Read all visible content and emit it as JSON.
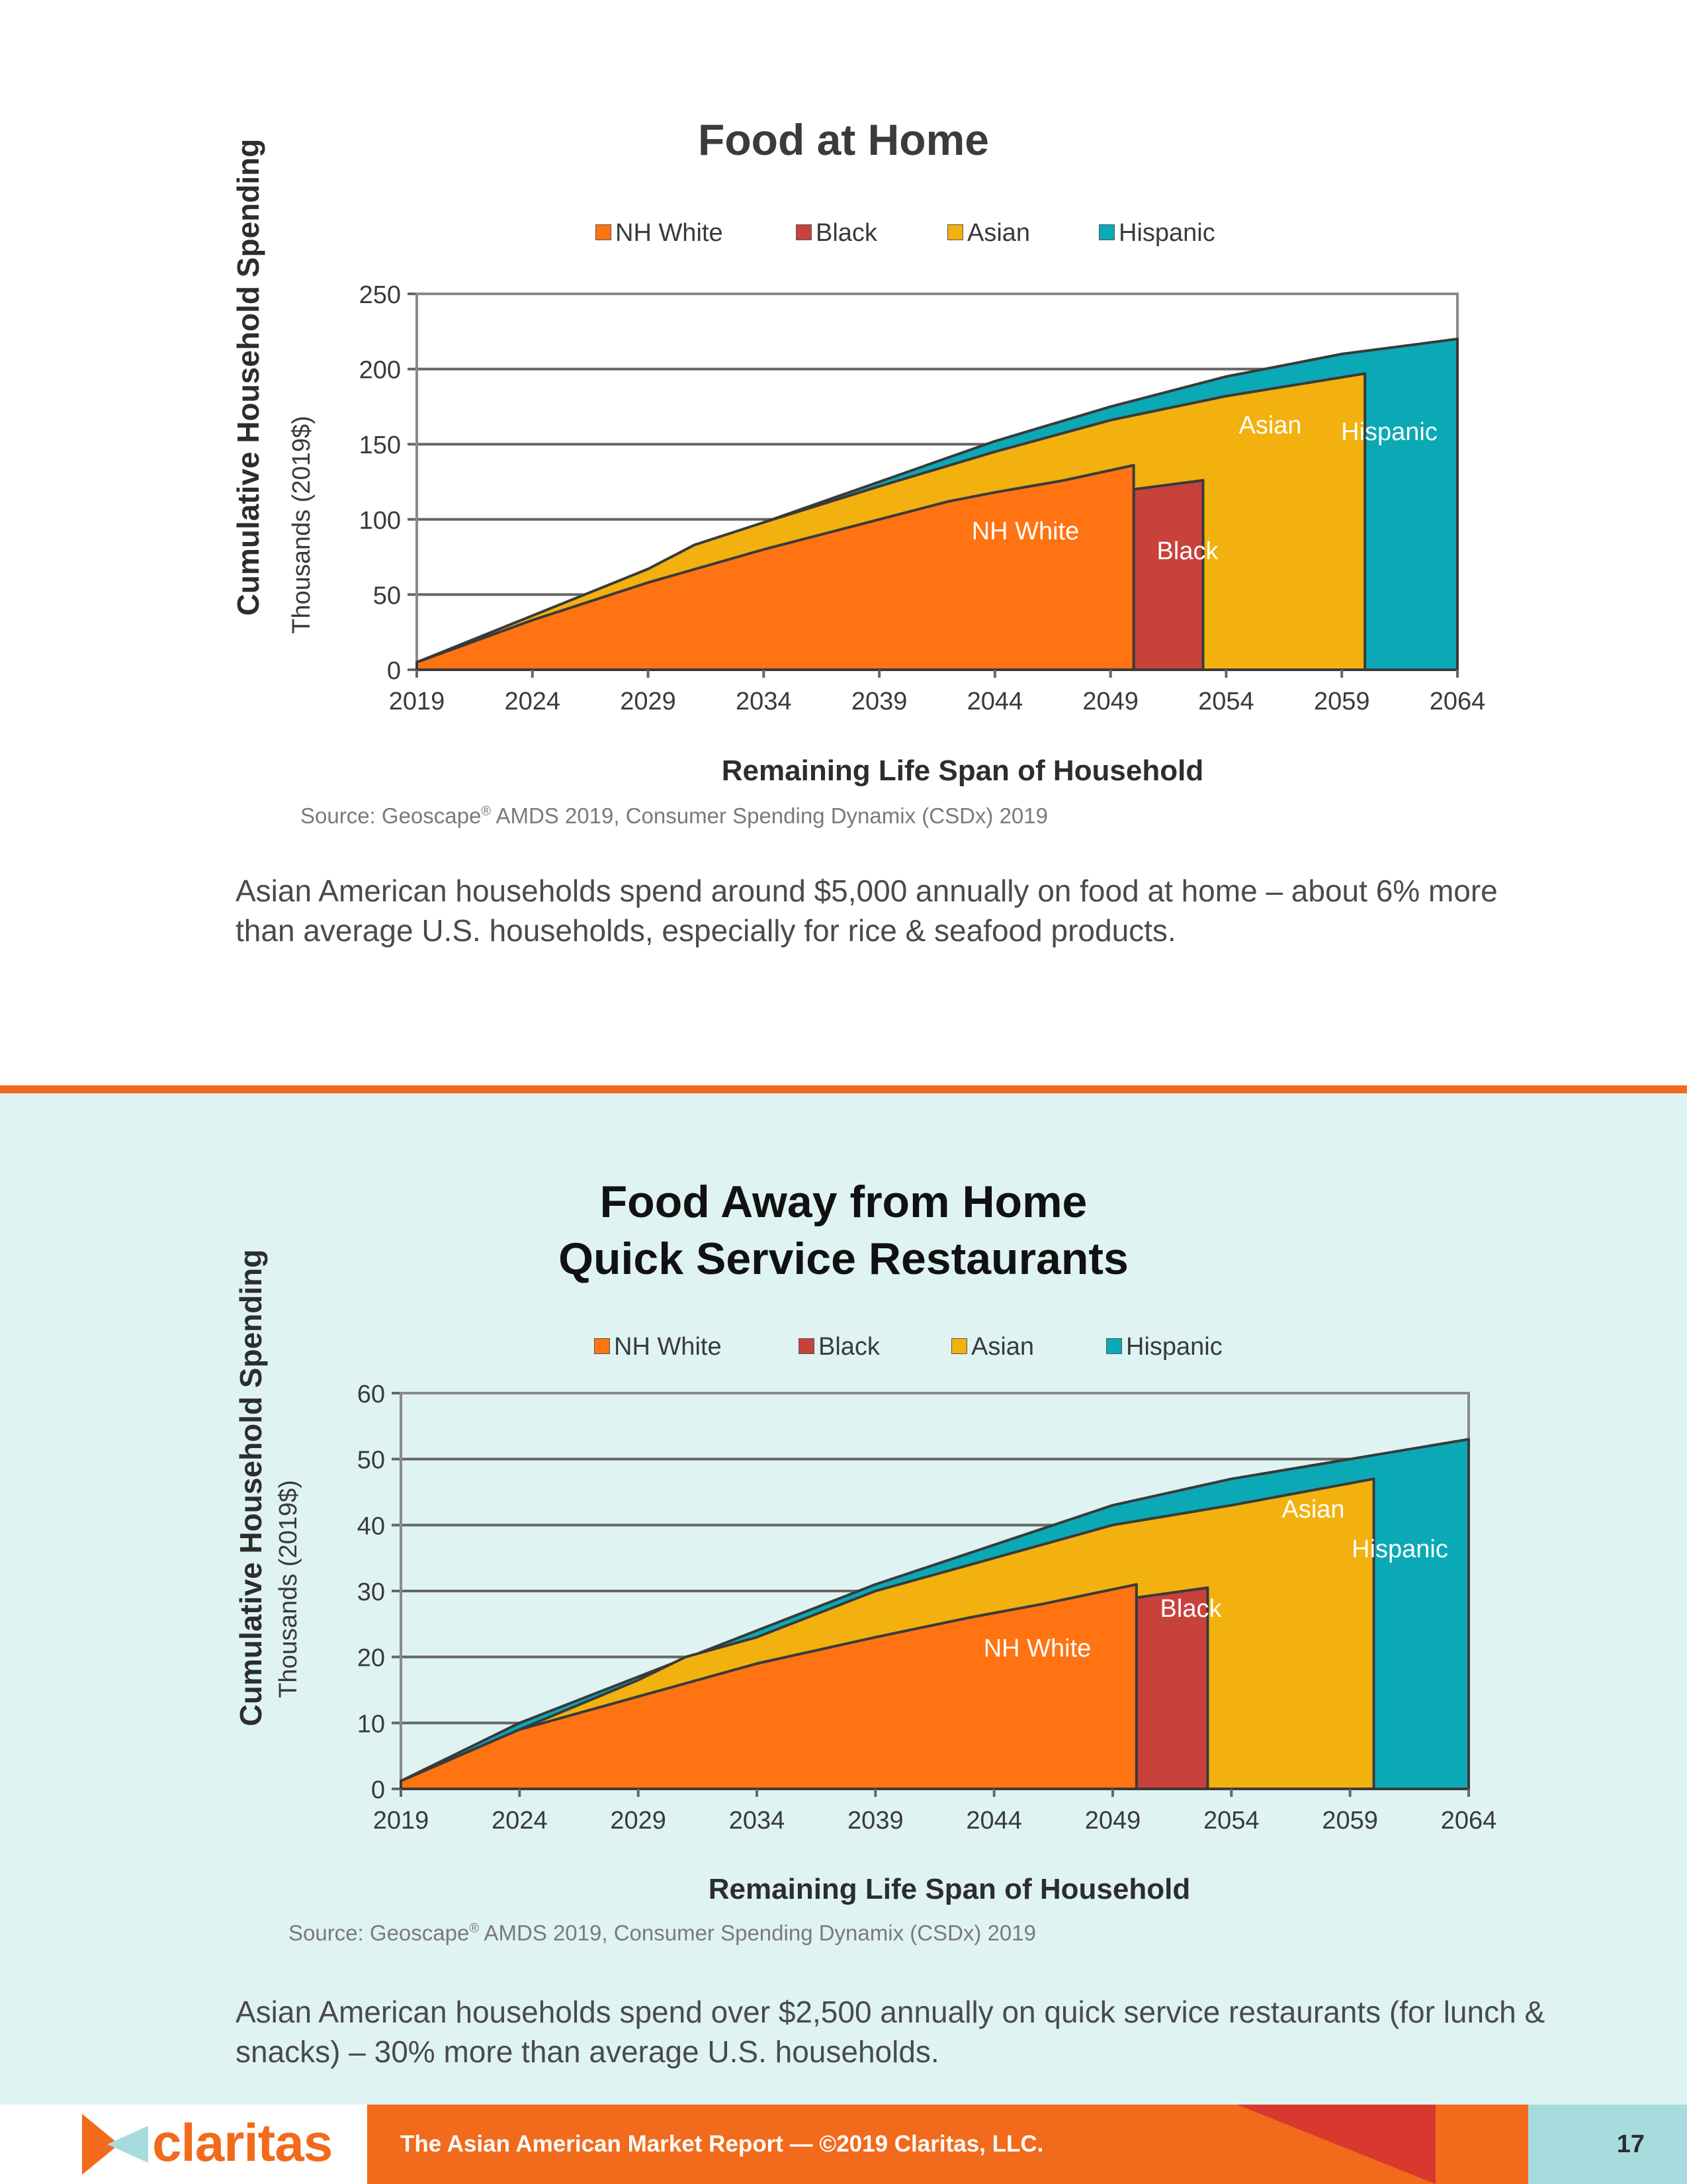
{
  "colors": {
    "nh_white": "#ff7313",
    "black": "#c8413a",
    "asian": "#f2b10e",
    "hispanic": "#0ba9b6",
    "accent": "#f26a1b",
    "bottom_bg": "#dff4f2"
  },
  "chart1": {
    "title": "Food at Home",
    "ylabel_main": "Cumulative Household Spending",
    "ylabel_sub": "Thousands (2019$)",
    "xlabel": "Remaining Life Span of Household",
    "source": "Source: Geoscape",
    "source_mark": "®",
    "source_rest": " AMDS 2019, Consumer Spending Dynamix (CSDx) 2019",
    "legend": [
      "NH White",
      "Black",
      "Asian",
      "Hispanic"
    ],
    "labels": {
      "nh_white": "NH White",
      "black": "Black",
      "asian": "Asian",
      "hispanic": "Hispanic"
    },
    "body": "Asian American households spend around $5,000 annually on food at home – about 6% more than average U.S. households, especially for rice & seafood products."
  },
  "chart2": {
    "title_line1": "Food Away from Home",
    "title_line2": "Quick Service Restaurants",
    "ylabel_main": "Cumulative Household Spending",
    "ylabel_sub": "Thousands (2019$)",
    "xlabel": "Remaining Life Span of Household",
    "source": "Source: Geoscape",
    "source_mark": "®",
    "source_rest": " AMDS 2019, Consumer Spending Dynamix (CSDx) 2019",
    "legend": [
      "NH White",
      "Black",
      "Asian",
      "Hispanic"
    ],
    "labels": {
      "nh_white": "NH White",
      "black": "Black",
      "asian": "Asian",
      "hispanic": "Hispanic"
    },
    "body": "Asian American households spend over $2,500 annually on quick service restaurants (for lunch & snacks) – 30% more than average U.S. households."
  },
  "chart_data": [
    {
      "type": "area",
      "title": "Food at Home",
      "xlabel": "Remaining Life Span of Household",
      "ylabel": "Cumulative Household Spending",
      "xlim": [
        2019,
        2064
      ],
      "ylim": [
        0,
        250
      ],
      "xticks": [
        2019,
        2024,
        2029,
        2034,
        2039,
        2044,
        2049,
        2054,
        2059,
        2064
      ],
      "yticks": [
        0,
        50,
        100,
        150,
        200,
        250
      ],
      "grid": true,
      "legend": "top",
      "series": [
        {
          "name": "Hispanic",
          "x": [
            2019,
            2024,
            2029,
            2031,
            2034,
            2039,
            2044,
            2049,
            2054,
            2059,
            2064
          ],
          "values": [
            5,
            35,
            67,
            80,
            98,
            125,
            152,
            175,
            195,
            210,
            220
          ]
        },
        {
          "name": "Asian",
          "x": [
            2019,
            2024,
            2029,
            2031,
            2034,
            2039,
            2044,
            2049,
            2054,
            2060
          ],
          "values": [
            5,
            36,
            67,
            83,
            98,
            122,
            145,
            166,
            182,
            197
          ]
        },
        {
          "name": "Black",
          "x": [
            2050,
            2053
          ],
          "values": [
            120,
            126
          ]
        },
        {
          "name": "NH White",
          "x": [
            2019,
            2024,
            2029,
            2034,
            2039,
            2042,
            2044,
            2047,
            2050
          ],
          "values": [
            5,
            33,
            58,
            80,
            100,
            112,
            118,
            126,
            136
          ]
        }
      ]
    },
    {
      "type": "area",
      "title": "Food Away from Home Quick Service Restaurants",
      "xlabel": "Remaining Life Span of Household",
      "ylabel": "Cumulative Household Spending",
      "xlim": [
        2019,
        2064
      ],
      "ylim": [
        0,
        60
      ],
      "xticks": [
        2019,
        2024,
        2029,
        2034,
        2039,
        2044,
        2049,
        2054,
        2059,
        2064
      ],
      "yticks": [
        0,
        10,
        20,
        30,
        40,
        50,
        60
      ],
      "grid": true,
      "legend": "top",
      "series": [
        {
          "name": "Hispanic",
          "x": [
            2019,
            2024,
            2029,
            2034,
            2039,
            2044,
            2049,
            2054,
            2059,
            2064
          ],
          "values": [
            1.2,
            10,
            17,
            24,
            31,
            37,
            43,
            47,
            50,
            53
          ]
        },
        {
          "name": "Asian",
          "x": [
            2019,
            2024,
            2029,
            2031,
            2034,
            2039,
            2044,
            2049,
            2054,
            2060
          ],
          "values": [
            1.2,
            9,
            16.5,
            20,
            23,
            30,
            35,
            40,
            43,
            47
          ]
        },
        {
          "name": "Black",
          "x": [
            2050,
            2053
          ],
          "values": [
            29,
            30.5
          ]
        },
        {
          "name": "NH White",
          "x": [
            2019,
            2024,
            2029,
            2032,
            2034,
            2039,
            2043,
            2046,
            2050
          ],
          "values": [
            1.2,
            9,
            14,
            17,
            19,
            23,
            26,
            28,
            31
          ]
        }
      ]
    }
  ],
  "footer": {
    "brand": "claritas",
    "text": "The Asian American Market Report — ©2019 Claritas, LLC.",
    "page": "17"
  }
}
